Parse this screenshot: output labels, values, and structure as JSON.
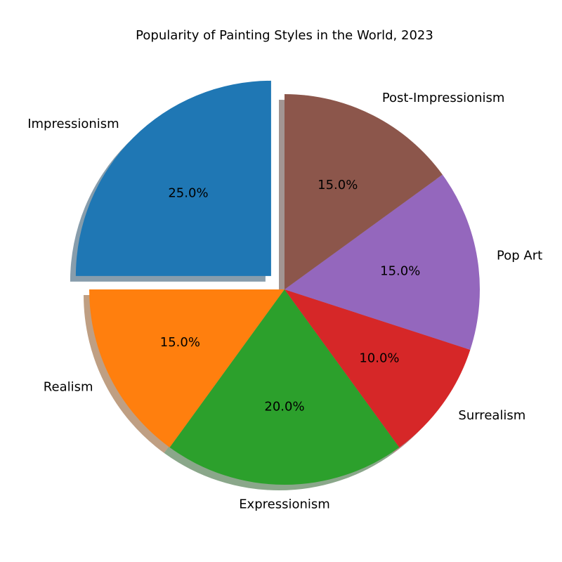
{
  "chart_data": {
    "type": "pie",
    "title": "Popularity of Painting Styles in the World, 2023",
    "slices": [
      {
        "label": "Impressionism",
        "value": 25.0,
        "pct_label": "25.0%",
        "color": "#1f77b4",
        "exploded": true
      },
      {
        "label": "Realism",
        "value": 15.0,
        "pct_label": "15.0%",
        "color": "#ff7f0e",
        "exploded": false
      },
      {
        "label": "Expressionism",
        "value": 20.0,
        "pct_label": "20.0%",
        "color": "#2ca02c",
        "exploded": false
      },
      {
        "label": "Surrealism",
        "value": 10.0,
        "pct_label": "10.0%",
        "color": "#d62728",
        "exploded": false
      },
      {
        "label": "Pop Art",
        "value": 15.0,
        "pct_label": "15.0%",
        "color": "#9467bd",
        "exploded": false
      },
      {
        "label": "Post-Impressionism",
        "value": 15.0,
        "pct_label": "15.0%",
        "color": "#8c564b",
        "exploded": false
      }
    ],
    "start_angle_deg": 90,
    "direction": "counterclockwise",
    "shadow": true,
    "legend": "none"
  }
}
